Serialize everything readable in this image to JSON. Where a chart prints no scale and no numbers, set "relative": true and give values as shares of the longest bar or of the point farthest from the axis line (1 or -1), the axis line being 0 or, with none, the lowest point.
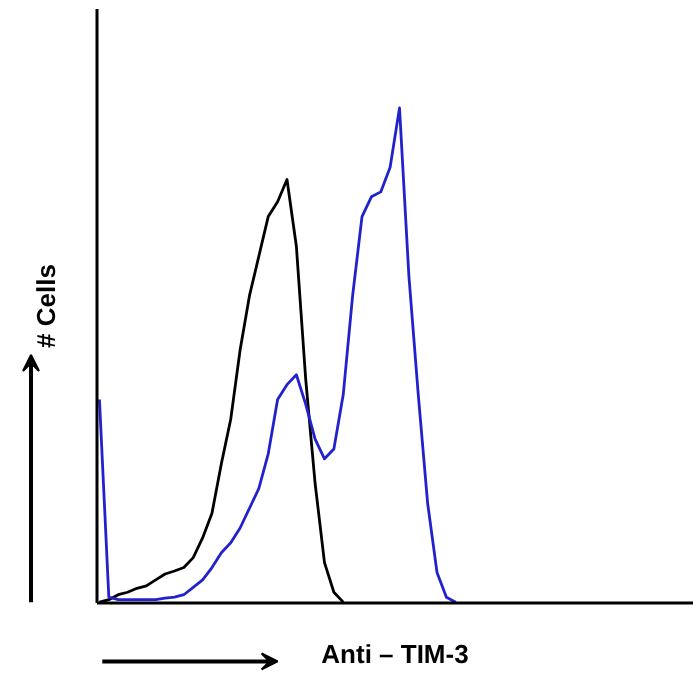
{
  "chart_data": {
    "type": "line",
    "relative": true,
    "xlabel": "Anti – TIM-3",
    "ylabel": "# Cells",
    "grid": false,
    "categories": [
      null,
      null,
      null,
      null,
      null,
      null,
      null,
      null,
      null,
      null,
      null,
      null,
      null,
      null,
      null,
      null,
      null,
      null,
      null,
      null,
      null,
      null,
      null,
      null,
      null,
      null,
      null,
      null,
      null,
      null,
      null,
      null,
      null,
      null,
      null,
      null,
      null,
      null,
      null,
      null,
      null,
      null,
      null,
      null,
      null,
      null,
      null,
      null,
      null,
      null,
      null,
      null,
      null,
      null,
      null,
      null,
      null,
      null,
      null,
      null,
      null,
      null,
      null,
      null
    ],
    "series": [
      {
        "color": "#000000",
        "values": [
          0,
          0.005,
          0.015,
          0.02,
          0.028,
          0.033,
          0.045,
          0.057,
          0.063,
          0.07,
          0.09,
          0.13,
          0.18,
          0.28,
          0.37,
          0.51,
          0.62,
          0.7,
          0.78,
          0.81,
          0.855,
          0.72,
          0.45,
          0.24,
          0.08,
          0.02,
          0,
          null,
          null,
          null,
          null,
          null,
          null,
          null,
          null,
          null,
          null,
          null,
          null,
          null,
          null,
          null,
          null,
          null,
          null,
          null,
          null,
          null,
          null,
          null,
          null,
          null,
          null,
          null,
          null,
          null,
          null,
          null,
          null,
          null,
          null,
          null,
          null,
          null
        ]
      },
      {
        "color": "#2222cc",
        "values": [
          0.41,
          0.01,
          0.005,
          0.005,
          0.005,
          0.005,
          0.005,
          0.008,
          0.01,
          0.015,
          0.03,
          0.045,
          0.07,
          0.1,
          0.12,
          0.15,
          0.19,
          0.23,
          0.3,
          0.41,
          0.44,
          0.46,
          0.4,
          0.33,
          0.29,
          0.31,
          0.42,
          0.62,
          0.78,
          0.82,
          0.83,
          0.88,
          1.0,
          0.66,
          0.42,
          0.2,
          0.06,
          0.01,
          0,
          null,
          null,
          null,
          null,
          null,
          null,
          null,
          null,
          null,
          null,
          null,
          null,
          null,
          null,
          null,
          null,
          null,
          null,
          null,
          null,
          null,
          null,
          null,
          null,
          null
        ]
      }
    ]
  }
}
